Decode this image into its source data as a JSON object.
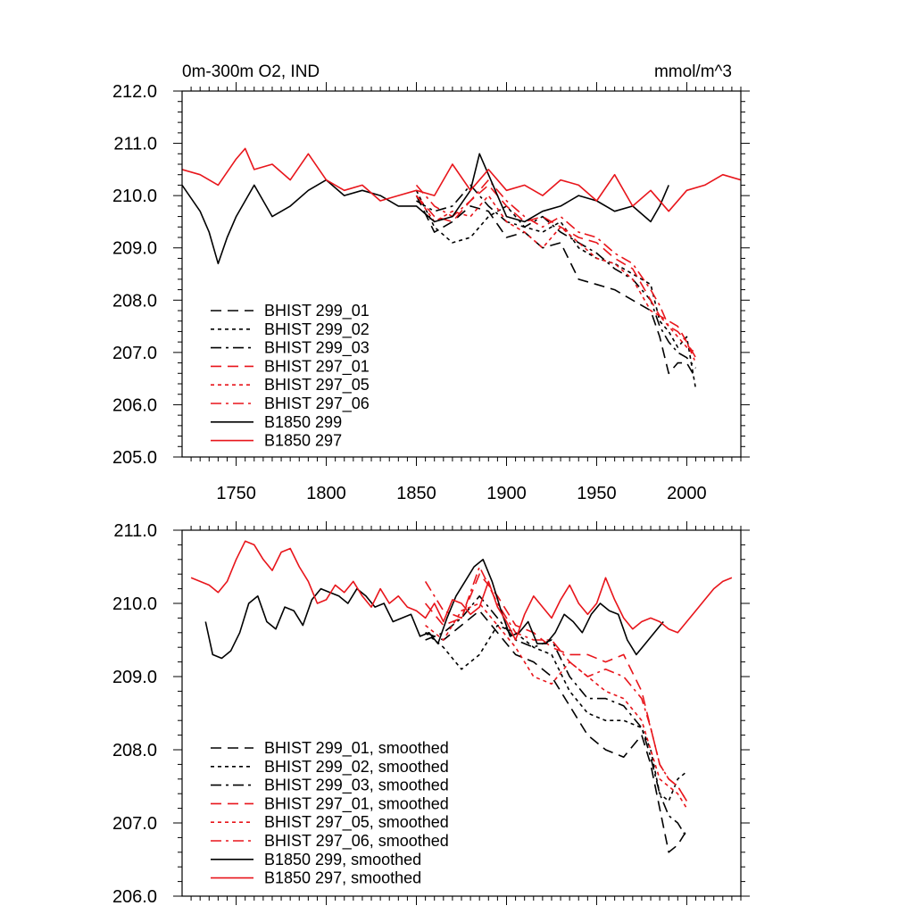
{
  "figure": {
    "title_left": "0m-300m O2, IND",
    "title_right": "mmol/m^3"
  },
  "colors": {
    "black": "#000000",
    "red": "#e8151b"
  },
  "chart_data": [
    {
      "type": "line",
      "xlim": [
        1720,
        2030
      ],
      "ylim": [
        205.0,
        212.0
      ],
      "x_ticks": [
        1750,
        1800,
        1850,
        1900,
        1950,
        2000
      ],
      "x_tick_labels": [
        "1750",
        "1800",
        "1850",
        "1900",
        "1950",
        "2000"
      ],
      "y_ticks": [
        205.0,
        206.0,
        207.0,
        208.0,
        209.0,
        210.0,
        211.0,
        212.0
      ],
      "y_tick_labels": [
        "205.0",
        "206.0",
        "207.0",
        "208.0",
        "209.0",
        "210.0",
        "211.0",
        "212.0"
      ],
      "grid": false,
      "legend_position": "lower-left",
      "series": [
        {
          "name": "BHIST 299_01",
          "color": "#000000",
          "dash": "dashed",
          "x": [
            1850,
            1860,
            1870,
            1880,
            1890,
            1900,
            1910,
            1920,
            1930,
            1940,
            1950,
            1960,
            1970,
            1980,
            1985,
            1990,
            1995,
            2000,
            2005
          ],
          "y": [
            210.0,
            209.3,
            209.5,
            209.8,
            209.7,
            209.2,
            209.3,
            209.0,
            209.1,
            208.4,
            208.3,
            208.2,
            208.0,
            207.8,
            207.3,
            206.6,
            206.8,
            206.8,
            206.5
          ]
        },
        {
          "name": "BHIST 299_02",
          "color": "#000000",
          "dash": "dotted",
          "x": [
            1850,
            1860,
            1870,
            1880,
            1890,
            1900,
            1910,
            1920,
            1930,
            1940,
            1950,
            1960,
            1970,
            1980,
            1985,
            1990,
            1995,
            2000,
            2005
          ],
          "y": [
            210.1,
            209.4,
            209.1,
            209.2,
            209.6,
            209.8,
            209.4,
            209.3,
            209.5,
            209.0,
            208.8,
            208.7,
            208.5,
            208.3,
            207.6,
            207.4,
            207.1,
            207.3,
            206.3
          ]
        },
        {
          "name": "BHIST 299_03",
          "color": "#000000",
          "dash": "dashdot",
          "x": [
            1850,
            1860,
            1870,
            1880,
            1890,
            1900,
            1910,
            1920,
            1930,
            1940,
            1950,
            1960,
            1970,
            1980,
            1985,
            1990,
            1995,
            2000,
            2005
          ],
          "y": [
            209.9,
            209.7,
            209.8,
            210.2,
            209.8,
            209.5,
            209.4,
            209.6,
            209.3,
            209.1,
            208.9,
            208.6,
            208.4,
            208.0,
            207.5,
            207.2,
            207.0,
            206.9,
            206.7
          ]
        },
        {
          "name": "BHIST 297_01",
          "color": "#e8151b",
          "dash": "dashed",
          "x": [
            1850,
            1860,
            1870,
            1880,
            1890,
            1900,
            1910,
            1920,
            1930,
            1940,
            1950,
            1960,
            1970,
            1980,
            1985,
            1990,
            1995,
            2000,
            2005
          ],
          "y": [
            210.0,
            209.6,
            209.5,
            209.9,
            210.2,
            209.8,
            209.5,
            209.6,
            209.4,
            209.2,
            209.1,
            208.8,
            208.6,
            208.0,
            207.7,
            207.6,
            207.5,
            207.2,
            206.9
          ]
        },
        {
          "name": "BHIST 297_05",
          "color": "#e8151b",
          "dash": "dotted",
          "x": [
            1850,
            1860,
            1870,
            1880,
            1890,
            1900,
            1910,
            1920,
            1930,
            1940,
            1950,
            1960,
            1970,
            1980,
            1985,
            1990,
            1995,
            2000,
            2005
          ],
          "y": [
            210.0,
            209.5,
            209.7,
            209.6,
            210.0,
            209.5,
            209.3,
            209.0,
            209.4,
            209.1,
            208.8,
            208.7,
            208.4,
            207.8,
            207.7,
            207.5,
            207.3,
            207.1,
            207.0
          ]
        },
        {
          "name": "BHIST 297_06",
          "color": "#e8151b",
          "dash": "dashdot",
          "x": [
            1850,
            1860,
            1870,
            1880,
            1890,
            1900,
            1910,
            1920,
            1930,
            1940,
            1950,
            1960,
            1970,
            1980,
            1985,
            1990,
            1995,
            2000,
            2005
          ],
          "y": [
            210.2,
            209.8,
            209.6,
            209.9,
            210.3,
            209.9,
            209.6,
            209.4,
            209.6,
            209.3,
            209.2,
            208.9,
            208.7,
            208.2,
            207.9,
            207.5,
            207.4,
            207.2,
            206.8
          ]
        },
        {
          "name": "B1850 299",
          "color": "#000000",
          "dash": "solid",
          "x": [
            1720,
            1730,
            1735,
            1740,
            1745,
            1750,
            1760,
            1770,
            1780,
            1790,
            1800,
            1810,
            1820,
            1830,
            1840,
            1850,
            1860,
            1870,
            1880,
            1885,
            1890,
            1900,
            1910,
            1920,
            1930,
            1940,
            1950,
            1960,
            1970,
            1980,
            1985,
            1990
          ],
          "y": [
            210.2,
            209.7,
            209.3,
            208.7,
            209.2,
            209.6,
            210.2,
            209.6,
            209.8,
            210.1,
            210.3,
            210.0,
            210.1,
            210.0,
            209.8,
            209.8,
            209.5,
            209.6,
            210.1,
            210.8,
            210.4,
            209.6,
            209.5,
            209.7,
            209.8,
            210.0,
            209.9,
            209.7,
            209.8,
            209.5,
            209.8,
            210.2
          ]
        },
        {
          "name": "B1850 297",
          "color": "#e8151b",
          "dash": "solid",
          "x": [
            1720,
            1730,
            1740,
            1750,
            1755,
            1760,
            1770,
            1780,
            1790,
            1800,
            1810,
            1820,
            1830,
            1840,
            1850,
            1860,
            1870,
            1880,
            1890,
            1900,
            1910,
            1920,
            1930,
            1940,
            1950,
            1960,
            1970,
            1980,
            1990,
            2000,
            2010,
            2020,
            2030
          ],
          "y": [
            210.5,
            210.4,
            210.2,
            210.7,
            210.9,
            210.5,
            210.6,
            210.3,
            210.8,
            210.3,
            210.1,
            210.2,
            209.9,
            210.0,
            210.1,
            210.0,
            210.6,
            210.1,
            210.5,
            210.1,
            210.2,
            210.0,
            210.3,
            210.2,
            209.9,
            210.4,
            209.8,
            210.1,
            209.7,
            210.1,
            210.2,
            210.4,
            210.3
          ]
        }
      ]
    },
    {
      "type": "line",
      "xlim": [
        1720,
        2030
      ],
      "ylim": [
        206.0,
        211.0
      ],
      "x_ticks": [
        1750,
        1800,
        1850,
        1900,
        1950,
        2000
      ],
      "y_ticks": [
        206.0,
        207.0,
        208.0,
        209.0,
        210.0,
        211.0
      ],
      "y_tick_labels": [
        "206.0",
        "207.0",
        "208.0",
        "209.0",
        "210.0",
        "211.0"
      ],
      "grid": false,
      "legend_position": "lower-left",
      "series": [
        {
          "name": "BHIST 299_01, smoothed",
          "color": "#000000",
          "dash": "dashed",
          "x": [
            1855,
            1865,
            1875,
            1885,
            1895,
            1905,
            1915,
            1925,
            1935,
            1945,
            1955,
            1965,
            1975,
            1980,
            1985,
            1990,
            1995,
            2000
          ],
          "y": [
            209.6,
            209.5,
            209.7,
            209.9,
            209.6,
            209.3,
            209.2,
            209.0,
            208.6,
            208.2,
            208.0,
            207.9,
            208.2,
            207.8,
            207.2,
            206.6,
            206.7,
            206.9
          ]
        },
        {
          "name": "BHIST 299_02, smoothed",
          "color": "#000000",
          "dash": "dotted",
          "x": [
            1855,
            1865,
            1875,
            1885,
            1895,
            1905,
            1915,
            1925,
            1935,
            1945,
            1955,
            1965,
            1975,
            1980,
            1985,
            1990,
            1995,
            2000
          ],
          "y": [
            209.6,
            209.4,
            209.1,
            209.3,
            209.7,
            209.6,
            209.4,
            209.3,
            208.8,
            208.5,
            208.4,
            208.4,
            208.3,
            208.0,
            207.4,
            207.3,
            207.6,
            207.7
          ]
        },
        {
          "name": "BHIST 299_03, smoothed",
          "color": "#000000",
          "dash": "dashdot",
          "x": [
            1855,
            1865,
            1875,
            1885,
            1895,
            1905,
            1915,
            1925,
            1935,
            1945,
            1955,
            1965,
            1975,
            1980,
            1985,
            1990,
            1995,
            2000
          ],
          "y": [
            209.5,
            209.6,
            209.8,
            210.1,
            209.8,
            209.5,
            209.4,
            209.5,
            209.0,
            208.7,
            208.7,
            208.6,
            208.3,
            207.9,
            207.4,
            207.1,
            207.0,
            206.8
          ]
        },
        {
          "name": "BHIST 297_01, smoothed",
          "color": "#e8151b",
          "dash": "dashed",
          "x": [
            1855,
            1865,
            1875,
            1885,
            1895,
            1905,
            1915,
            1925,
            1935,
            1945,
            1955,
            1965,
            1975,
            1980,
            1985,
            1990,
            1995,
            2000
          ],
          "y": [
            210.0,
            209.7,
            209.8,
            210.4,
            210.1,
            209.7,
            209.6,
            209.4,
            209.3,
            209.3,
            209.2,
            209.3,
            208.8,
            208.3,
            207.8,
            207.6,
            207.5,
            207.3
          ]
        },
        {
          "name": "BHIST 297_05, smoothed",
          "color": "#e8151b",
          "dash": "dotted",
          "x": [
            1855,
            1865,
            1875,
            1885,
            1895,
            1905,
            1915,
            1925,
            1935,
            1945,
            1955,
            1965,
            1975,
            1980,
            1985,
            1990,
            1995,
            2000
          ],
          "y": [
            209.7,
            209.5,
            209.9,
            210.0,
            209.7,
            209.4,
            209.0,
            208.9,
            209.2,
            209.0,
            208.8,
            208.7,
            208.4,
            208.0,
            207.6,
            207.5,
            207.4,
            207.2
          ]
        },
        {
          "name": "BHIST 297_06, smoothed",
          "color": "#e8151b",
          "dash": "dashdot",
          "x": [
            1855,
            1865,
            1875,
            1885,
            1895,
            1905,
            1915,
            1925,
            1935,
            1945,
            1955,
            1965,
            1975,
            1980,
            1985,
            1990,
            1995,
            2000
          ],
          "y": [
            210.3,
            209.9,
            209.8,
            210.5,
            210.0,
            209.6,
            209.5,
            209.5,
            209.2,
            209.0,
            209.1,
            209.0,
            208.7,
            208.3,
            207.8,
            207.6,
            207.5,
            207.3
          ]
        },
        {
          "name": "B1850 299, smoothed",
          "color": "#000000",
          "dash": "solid",
          "x": [
            1733,
            1737,
            1742,
            1747,
            1752,
            1757,
            1762,
            1767,
            1772,
            1777,
            1782,
            1787,
            1792,
            1797,
            1802,
            1807,
            1812,
            1817,
            1822,
            1827,
            1832,
            1837,
            1842,
            1847,
            1852,
            1857,
            1862,
            1867,
            1872,
            1877,
            1882,
            1887,
            1892,
            1897,
            1902,
            1907,
            1912,
            1917,
            1922,
            1927,
            1932,
            1937,
            1942,
            1947,
            1952,
            1957,
            1962,
            1967,
            1972,
            1977,
            1982,
            1987
          ],
          "y": [
            209.75,
            209.3,
            209.25,
            209.35,
            209.6,
            210.0,
            210.1,
            209.75,
            209.65,
            209.95,
            209.9,
            209.7,
            210.05,
            210.2,
            210.15,
            210.1,
            210.0,
            210.2,
            210.1,
            209.95,
            210.0,
            209.75,
            209.8,
            209.85,
            209.55,
            209.6,
            209.45,
            209.8,
            210.1,
            210.3,
            210.5,
            210.6,
            210.3,
            209.9,
            209.55,
            209.6,
            209.75,
            209.45,
            209.45,
            209.6,
            209.85,
            209.75,
            209.6,
            209.85,
            210.0,
            209.9,
            209.85,
            209.5,
            209.3,
            209.45,
            209.6,
            209.75
          ]
        },
        {
          "name": "B1850 297, smoothed",
          "color": "#e8151b",
          "dash": "solid",
          "x": [
            1725,
            1730,
            1735,
            1740,
            1745,
            1750,
            1755,
            1760,
            1765,
            1770,
            1775,
            1780,
            1785,
            1790,
            1795,
            1800,
            1805,
            1810,
            1815,
            1820,
            1825,
            1830,
            1835,
            1840,
            1845,
            1850,
            1855,
            1860,
            1865,
            1870,
            1875,
            1880,
            1885,
            1890,
            1895,
            1900,
            1905,
            1910,
            1915,
            1920,
            1925,
            1930,
            1935,
            1940,
            1945,
            1950,
            1955,
            1960,
            1965,
            1970,
            1975,
            1980,
            1985,
            1990,
            1995,
            2000,
            2005,
            2010,
            2015,
            2020,
            2025
          ],
          "y": [
            210.35,
            210.3,
            210.25,
            210.15,
            210.3,
            210.6,
            210.85,
            210.8,
            210.6,
            210.45,
            210.7,
            210.75,
            210.5,
            210.3,
            210.0,
            210.05,
            210.25,
            210.15,
            210.3,
            210.1,
            209.95,
            210.2,
            210.0,
            210.1,
            209.95,
            209.9,
            209.8,
            210.0,
            209.75,
            210.05,
            210.0,
            209.85,
            209.95,
            210.3,
            209.95,
            209.75,
            209.5,
            209.85,
            210.1,
            209.95,
            209.8,
            210.05,
            210.25,
            210.0,
            209.85,
            210.0,
            210.35,
            210.05,
            209.8,
            209.65,
            209.75,
            209.8,
            209.75,
            209.65,
            209.6,
            209.75,
            209.9,
            210.05,
            210.2,
            210.3,
            210.35
          ]
        }
      ]
    }
  ]
}
